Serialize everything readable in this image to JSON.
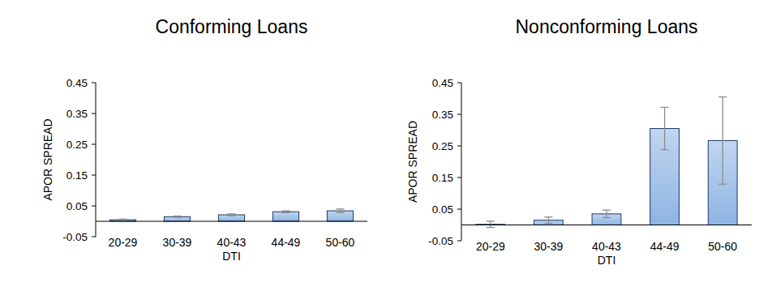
{
  "chart_data": [
    {
      "type": "bar",
      "title": "Conforming Loans",
      "x_label": "DTI",
      "y_label": "APOR SPREAD",
      "categories": [
        "20-29",
        "30-39",
        "40-43",
        "44-49",
        "50-60"
      ],
      "values": [
        0.005,
        0.015,
        0.021,
        0.031,
        0.034
      ],
      "errors": [
        0.002,
        0.002,
        0.003,
        0.003,
        0.006
      ],
      "color": "#8eb4e3",
      "ylim": [
        -0.05,
        0.45
      ],
      "yticks": [
        -0.05,
        0.05,
        0.15,
        0.25,
        0.35,
        0.45
      ],
      "grid": false
    },
    {
      "type": "bar",
      "title": "Nonconforming Loans",
      "x_label": "DTI",
      "y_label": "APOR SPREAD",
      "categories": [
        "20-29",
        "30-39",
        "40-43",
        "44-49",
        "50-60"
      ],
      "values": [
        0.002,
        0.015,
        0.035,
        0.305,
        0.267
      ],
      "errors": [
        0.01,
        0.01,
        0.012,
        0.067,
        0.138
      ],
      "color": "#8eb4e3",
      "ylim": [
        -0.05,
        0.45
      ],
      "yticks": [
        -0.05,
        0.05,
        0.15,
        0.25,
        0.35,
        0.45
      ],
      "grid": false
    }
  ]
}
